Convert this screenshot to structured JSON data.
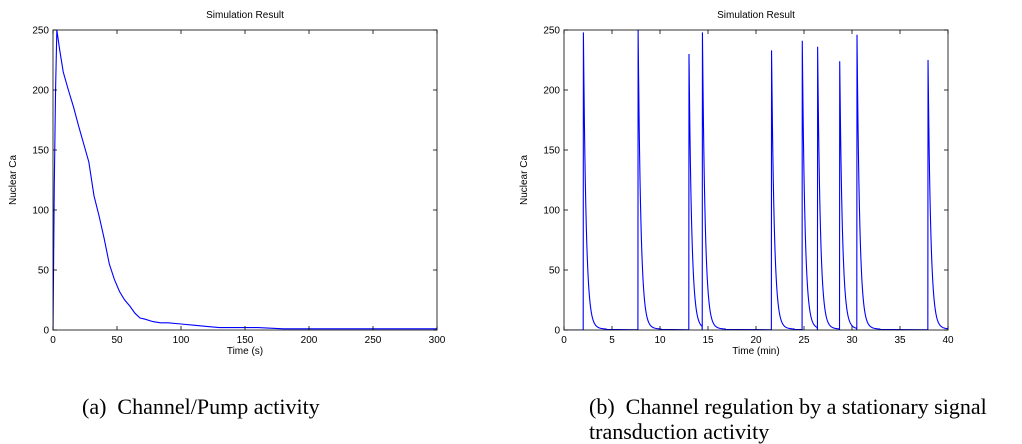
{
  "chart_data": [
    {
      "type": "line",
      "title": "Simulation Result",
      "xlabel": "Time (s)",
      "ylabel": "Nuclear Ca",
      "xlim": [
        0,
        300
      ],
      "ylim": [
        0,
        250
      ],
      "xticks": [
        0,
        50,
        100,
        150,
        200,
        250,
        300
      ],
      "yticks": [
        0,
        50,
        100,
        150,
        200,
        250
      ],
      "grid": false,
      "line_color": "#0000ff",
      "series": [
        {
          "x": [
            0,
            1,
            2,
            3,
            5,
            8,
            12,
            16,
            20,
            24,
            28,
            32,
            36,
            40,
            44,
            48,
            52,
            56,
            60,
            64,
            68,
            72,
            78,
            84,
            90,
            100,
            110,
            120,
            130,
            140,
            160,
            180,
            200,
            250,
            300
          ],
          "y": [
            0,
            120,
            200,
            250,
            235,
            215,
            200,
            186,
            170,
            155,
            140,
            112,
            95,
            76,
            55,
            42,
            32,
            25,
            20,
            14,
            10,
            9,
            7,
            6,
            6,
            5,
            4,
            3,
            2,
            2,
            2,
            1,
            1,
            1,
            1
          ]
        }
      ]
    },
    {
      "type": "line",
      "title": "Simulation Result",
      "xlabel": "Time (min)",
      "ylabel": "Nuclear Ca",
      "xlim": [
        0,
        40
      ],
      "ylim": [
        0,
        250
      ],
      "xticks": [
        0,
        5,
        10,
        15,
        20,
        25,
        30,
        35,
        40
      ],
      "yticks": [
        0,
        50,
        100,
        150,
        200,
        250
      ],
      "grid": false,
      "line_color": "#0000ff",
      "spikes": [
        {
          "t": 2.0,
          "peak": 248
        },
        {
          "t": 7.7,
          "peak": 250
        },
        {
          "t": 13.0,
          "peak": 230
        },
        {
          "t": 14.4,
          "peak": 248
        },
        {
          "t": 21.6,
          "peak": 233
        },
        {
          "t": 24.8,
          "peak": 241
        },
        {
          "t": 26.4,
          "peak": 236
        },
        {
          "t": 28.7,
          "peak": 224
        },
        {
          "t": 30.5,
          "peak": 246
        },
        {
          "t": 37.9,
          "peak": 225
        }
      ]
    }
  ],
  "captions": [
    {
      "tag": "(a)",
      "text": "Channel/Pump activity"
    },
    {
      "tag": "(b)",
      "line1": "Channel regulation by a stationary signal",
      "line2": "transduction activity"
    }
  ]
}
